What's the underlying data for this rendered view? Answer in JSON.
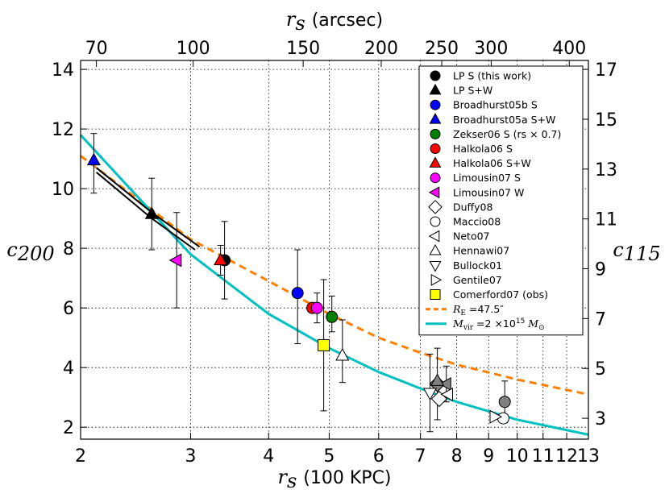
{
  "chart_data": {
    "type": "scatter",
    "x_axis": {
      "label_symbol": "r",
      "label_sub": "s",
      "label_unit": "(100 KPC)",
      "scale": "log",
      "range": [
        2,
        13
      ],
      "ticks": [
        2,
        3,
        4,
        5,
        6,
        7,
        8,
        9,
        10,
        11,
        12,
        13
      ],
      "tick_labels": [
        "2",
        "3",
        "4",
        "5",
        "6",
        "7",
        "8",
        "9",
        "10",
        "11",
        "12",
        "13"
      ]
    },
    "x_top_axis": {
      "label_symbol": "r",
      "label_sub": "s",
      "label_unit": "(arcsec)",
      "ticks": [
        70,
        100,
        150,
        200,
        250,
        300,
        400
      ],
      "tick_labels": [
        "70",
        "100",
        "150",
        "200",
        "250",
        "300",
        "400"
      ]
    },
    "y_axis": {
      "label_symbol": "c",
      "label_sub": "200",
      "range": [
        1.6,
        14.3
      ],
      "ticks": [
        2,
        4,
        6,
        8,
        10,
        12,
        14
      ],
      "tick_labels": [
        "2",
        "4",
        "6",
        "8",
        "10",
        "12",
        "14"
      ]
    },
    "y_right_axis": {
      "label_symbol": "c",
      "label_sub": "115",
      "ticks": [
        3,
        5,
        7,
        9,
        11,
        13,
        15,
        17
      ],
      "tick_labels": [
        "3",
        "5",
        "7",
        "9",
        "11",
        "13",
        "15",
        "17"
      ]
    },
    "grid": true,
    "legend_position": "top-right",
    "series": [
      {
        "name": "LP S (this work)",
        "marker": "circle",
        "color": "#000000",
        "points": [
          {
            "x": 3.4,
            "y": 7.6,
            "err_lo": 1.3,
            "err_hi": 1.3
          }
        ]
      },
      {
        "name": "LP S+W",
        "marker": "triangle-up",
        "color": "#000000",
        "points": [
          {
            "x": 2.6,
            "y": 9.15,
            "err_lo": 1.2,
            "err_hi": 1.2
          }
        ]
      },
      {
        "name": "Broadhurst05b S",
        "marker": "circle",
        "color": "#0000ff",
        "points": [
          {
            "x": 4.45,
            "y": 6.5,
            "err_lo": 1.7,
            "err_hi": 1.45
          }
        ]
      },
      {
        "name": "Broadhurst05a S+W",
        "marker": "triangle-up",
        "color": "#0000ff",
        "points": [
          {
            "x": 2.1,
            "y": 10.95,
            "err_lo": 1.1,
            "err_hi": 0.9
          }
        ]
      },
      {
        "name": "Zekser06 S (rs × 0.7)",
        "marker": "circle",
        "color": "#008000",
        "points": [
          {
            "x": 5.05,
            "y": 5.7,
            "err_lo": 0.5,
            "err_hi": 0.7
          }
        ]
      },
      {
        "name": "Halkola06 S",
        "marker": "circle",
        "color": "#ff0000",
        "points": [
          {
            "x": 4.7,
            "y": 6.0
          }
        ]
      },
      {
        "name": "Halkola06 S+W",
        "marker": "triangle-up",
        "color": "#ff0000",
        "points": [
          {
            "x": 3.35,
            "y": 7.6,
            "err_lo": 0.5,
            "err_hi": 0.5
          }
        ]
      },
      {
        "name": "Limousin07 S",
        "marker": "circle",
        "color": "#ff00ff",
        "points": [
          {
            "x": 4.78,
            "y": 6.0,
            "err_lo": 0.5,
            "err_hi": 0.5
          }
        ]
      },
      {
        "name": "Limousin07 W",
        "marker": "triangle-left",
        "color": "#ff00ff",
        "points": [
          {
            "x": 2.85,
            "y": 7.6,
            "err_lo": 1.6,
            "err_hi": 1.6
          }
        ]
      },
      {
        "name": "Duffy08",
        "marker": "diamond",
        "color": "#ffffff",
        "points": [
          {
            "x": 7.5,
            "y": 2.95
          }
        ]
      },
      {
        "name": "Maccio08",
        "marker": "circle-open",
        "color": "#ffffff",
        "points": [
          {
            "x": 9.5,
            "y": 2.3
          }
        ]
      },
      {
        "name": "Neto07",
        "marker": "triangle-left",
        "color": "#ffffff",
        "points": [
          {
            "x": 7.75,
            "y": 3.1
          }
        ]
      },
      {
        "name": "Hennawi07",
        "marker": "triangle-up",
        "color": "#ffffff",
        "points": [
          {
            "x": 5.25,
            "y": 4.4,
            "err_lo": 0.9,
            "err_hi": 1.2
          }
        ]
      },
      {
        "name": "Bullock01",
        "marker": "triangle-down",
        "color": "#ffffff",
        "points": [
          {
            "x": 7.25,
            "y": 3.15,
            "err_lo": 1.3,
            "err_hi": 1.3
          }
        ]
      },
      {
        "name": "Gentile07",
        "marker": "triangle-right",
        "color": "#ffffff",
        "points": [
          {
            "x": 9.2,
            "y": 2.35
          }
        ]
      },
      {
        "name": "Comerford07 (obs)",
        "marker": "square",
        "color": "#ffff00",
        "points": [
          {
            "x": 4.9,
            "y": 4.75,
            "err_lo": 2.2,
            "err_hi": 2.2
          }
        ]
      }
    ],
    "gray_points": [
      {
        "marker": "circle",
        "x": 9.55,
        "y": 2.85,
        "err_lo": 0.7,
        "err_hi": 0.7
      },
      {
        "marker": "diamond",
        "x": 7.45,
        "y": 3.45,
        "err_lo": 1.2,
        "err_hi": 1.2
      },
      {
        "marker": "triangle-left",
        "x": 7.7,
        "y": 3.45,
        "err_lo": 0.6,
        "err_hi": 0.6
      },
      {
        "marker": "triangle-up",
        "x": 7.45,
        "y": 3.55
      }
    ],
    "curves": [
      {
        "name": "R_E = 47.5″",
        "legend_label_main": "R",
        "legend_label_sub": "E",
        "legend_label_rest": " =47.5″",
        "style": "dashed",
        "color": "#ff8000",
        "points": [
          [
            2,
            11.1
          ],
          [
            3,
            8.3
          ],
          [
            4,
            6.9
          ],
          [
            5,
            5.8
          ],
          [
            6,
            5.0
          ],
          [
            7,
            4.5
          ],
          [
            8,
            4.1
          ],
          [
            10,
            3.6
          ],
          [
            13,
            3.1
          ]
        ]
      },
      {
        "name": "M_vir = 2×10^15 M_⊙",
        "legend_label_main": "M",
        "legend_label_sub": "vir",
        "legend_label_rest": " =2 ×10",
        "legend_label_exp": "15",
        "legend_label_tail": " M",
        "legend_label_tail_sub": "⊙",
        "style": "solid",
        "color": "#00c0c0",
        "points": [
          [
            2,
            11.8
          ],
          [
            3,
            7.8
          ],
          [
            4,
            5.8
          ],
          [
            5,
            4.65
          ],
          [
            6,
            3.85
          ],
          [
            7,
            3.3
          ],
          [
            8,
            2.85
          ],
          [
            10,
            2.25
          ],
          [
            13,
            1.75
          ]
        ]
      },
      {
        "name": "black curve",
        "style": "solid",
        "color": "#000000",
        "points": [
          [
            2.12,
            10.7
          ],
          [
            2.6,
            9.2
          ],
          [
            3.1,
            8.05
          ]
        ]
      },
      {
        "name": "black curve 2",
        "style": "solid",
        "color": "#000000",
        "points": [
          [
            2.12,
            10.55
          ],
          [
            2.6,
            9.0
          ],
          [
            3.05,
            7.95
          ]
        ]
      }
    ]
  }
}
